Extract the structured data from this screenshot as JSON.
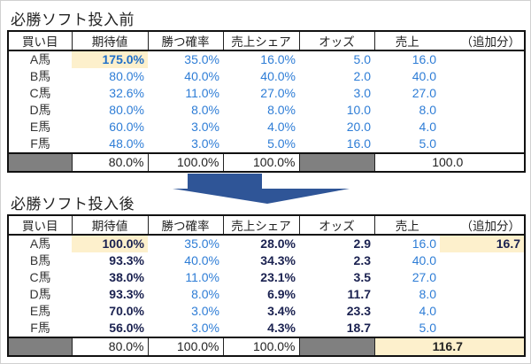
{
  "before": {
    "title": "必勝ソフト投入前",
    "headers": [
      "買い目",
      "期待値",
      "勝つ確率",
      "売上シェア",
      "オッズ",
      "売上",
      "（追加分）"
    ],
    "rows": [
      {
        "name": "A馬",
        "ev": "175.0%",
        "prob": "35.0%",
        "share": "16.0%",
        "odds": "5.0",
        "sales": "16.0",
        "add": ""
      },
      {
        "name": "B馬",
        "ev": "80.0%",
        "prob": "40.0%",
        "share": "40.0%",
        "odds": "2.0",
        "sales": "40.0",
        "add": ""
      },
      {
        "name": "C馬",
        "ev": "32.6%",
        "prob": "11.0%",
        "share": "27.0%",
        "odds": "3.0",
        "sales": "27.0",
        "add": ""
      },
      {
        "name": "D馬",
        "ev": "80.0%",
        "prob": "8.0%",
        "share": "8.0%",
        "odds": "10.0",
        "sales": "8.0",
        "add": ""
      },
      {
        "name": "E馬",
        "ev": "60.0%",
        "prob": "3.0%",
        "share": "4.0%",
        "odds": "20.0",
        "sales": "4.0",
        "add": ""
      },
      {
        "name": "F馬",
        "ev": "48.0%",
        "prob": "3.0%",
        "share": "5.0%",
        "odds": "16.0",
        "sales": "5.0",
        "add": ""
      }
    ],
    "totals": {
      "ev": "80.0%",
      "prob": "100.0%",
      "share": "100.0%",
      "sales": "100.0"
    }
  },
  "after": {
    "title": "必勝ソフト投入後",
    "headers": [
      "買い目",
      "期待値",
      "勝つ確率",
      "売上シェア",
      "オッズ",
      "売上",
      "（追加分）"
    ],
    "rows": [
      {
        "name": "A馬",
        "ev": "100.0%",
        "prob": "35.0%",
        "share": "28.0%",
        "odds": "2.9",
        "sales": "16.0",
        "add": "16.7"
      },
      {
        "name": "B馬",
        "ev": "93.3%",
        "prob": "40.0%",
        "share": "34.3%",
        "odds": "2.3",
        "sales": "40.0",
        "add": ""
      },
      {
        "name": "C馬",
        "ev": "38.0%",
        "prob": "11.0%",
        "share": "23.1%",
        "odds": "3.5",
        "sales": "27.0",
        "add": ""
      },
      {
        "name": "D馬",
        "ev": "93.3%",
        "prob": "8.0%",
        "share": "6.9%",
        "odds": "11.7",
        "sales": "8.0",
        "add": ""
      },
      {
        "name": "E馬",
        "ev": "70.0%",
        "prob": "3.0%",
        "share": "3.4%",
        "odds": "23.3",
        "sales": "4.0",
        "add": ""
      },
      {
        "name": "F馬",
        "ev": "56.0%",
        "prob": "3.0%",
        "share": "4.3%",
        "odds": "18.7",
        "sales": "5.0",
        "add": ""
      }
    ],
    "totals": {
      "ev": "80.0%",
      "prob": "100.0%",
      "share": "100.0%",
      "sales": "116.7"
    }
  },
  "colors": {
    "blue_text": "#2e7dd6",
    "bold_text": "#1a2150",
    "highlight": "#fdf0cc",
    "total_gray": "#808080",
    "arrow": "#2f5597"
  },
  "icons": {
    "arrow": "down-arrow-icon"
  }
}
